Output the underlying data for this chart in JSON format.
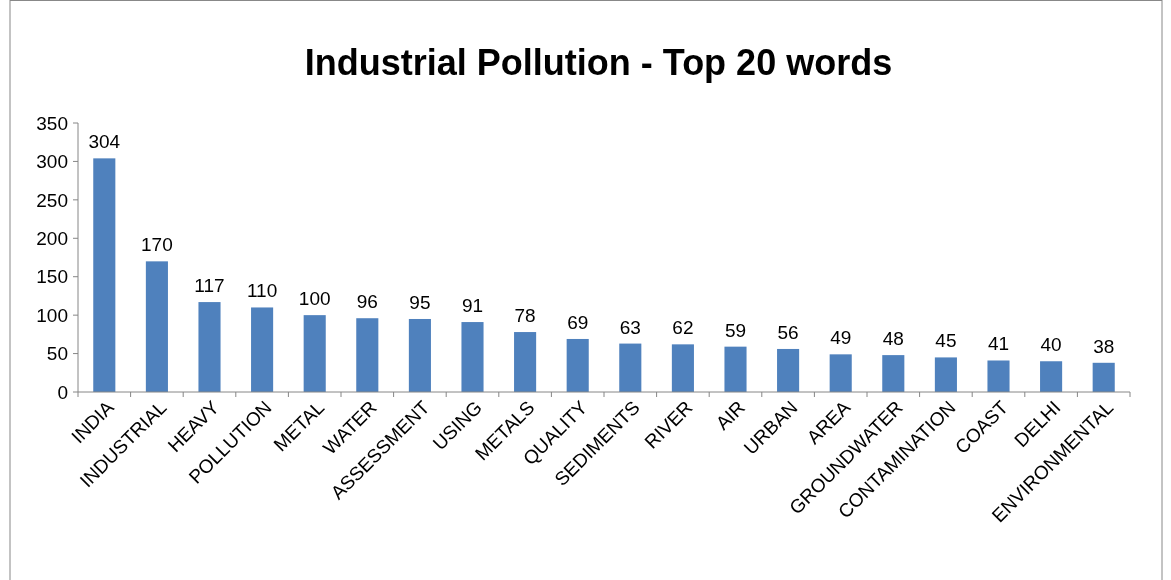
{
  "chart_data": {
    "type": "bar",
    "title": "Industrial Pollution - Top 20 words",
    "categories": [
      "INDIA",
      "INDUSTRIAL",
      "HEAVY",
      "POLLUTION",
      "METAL",
      "WATER",
      "ASSESSMENT",
      "USING",
      "METALS",
      "QUALITY",
      "SEDIMENTS",
      "RIVER",
      "AIR",
      "URBAN",
      "AREA",
      "GROUNDWATER",
      "CONTAMINATION",
      "COAST",
      "DELHI",
      "ENVIRONMENTAL"
    ],
    "values": [
      304,
      170,
      117,
      110,
      100,
      96,
      95,
      91,
      78,
      69,
      63,
      62,
      59,
      56,
      49,
      48,
      45,
      41,
      40,
      38
    ],
    "color": "#4f81bd",
    "ylim": [
      0,
      350
    ],
    "yticks": [
      0,
      50,
      100,
      150,
      200,
      250,
      300,
      350
    ],
    "data_labels": true,
    "grid": false
  }
}
